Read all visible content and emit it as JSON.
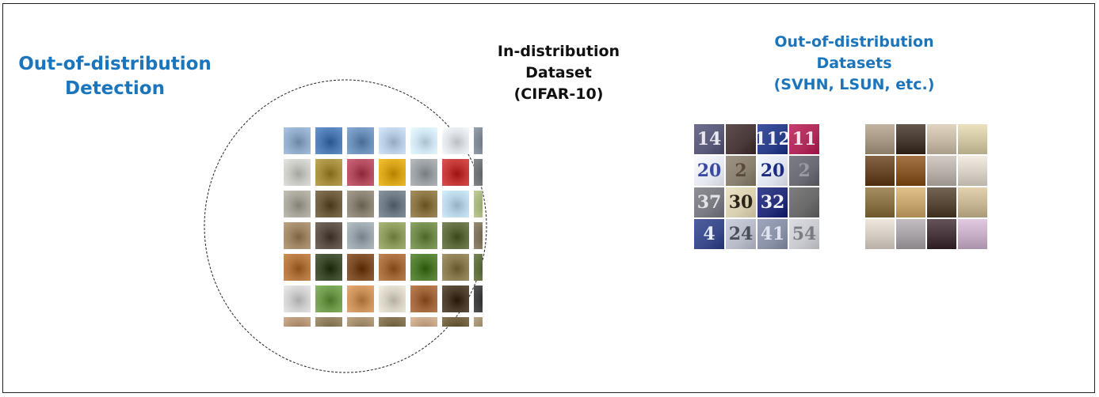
{
  "title": {
    "line1": "Out-of-distribution",
    "line2": "Detection"
  },
  "in_distribution": {
    "line1": "In-distribution",
    "line2": "Dataset",
    "line3": "(CIFAR-10)"
  },
  "out_of_distribution": {
    "line1": "Out-of-distribution",
    "line2": "Datasets",
    "line3": "(SVHN, LSUN, etc.)"
  },
  "colors": {
    "accent": "#1a75bc",
    "text": "#111111"
  },
  "cifar_rows": [
    [
      "#8fa9c9",
      "#4d79b3",
      "#6a8fb9",
      "#b9cde4",
      "#cfe5f2",
      "#dfe3e8",
      "#7b8591"
    ],
    [
      "#c9c9c4",
      "#a58b3c",
      "#b04a5c",
      "#d9a518",
      "#9aa0a3",
      "#c23636",
      "#6b6e70"
    ],
    [
      "#a7a49a",
      "#6c5a3d",
      "#8a8272",
      "#6e7b86",
      "#8a7443",
      "#b8d4e6",
      "#a3b27a"
    ],
    [
      "#a18766",
      "#5b4f46",
      "#9aa4ab",
      "#8d9c5c",
      "#6f8a4b",
      "#5e6b3c",
      "#7b6f58"
    ],
    [
      "#b0743c",
      "#3b4a2a",
      "#7a4a25",
      "#a56a3a",
      "#4e7a2e",
      "#8a7a50",
      "#5a6a3a"
    ],
    [
      "#cfcfcf",
      "#6f9a4b",
      "#c9905a",
      "#d8d3c4",
      "#a0663a",
      "#4a3a2a",
      "#3a3a3a"
    ],
    [
      "#b09070",
      "#8a7a5a",
      "#a08a6a",
      "#7a6a4a",
      "#c0a080",
      "#6a5a3a",
      "#9a8a6a"
    ]
  ],
  "svhn_rows": [
    [
      {
        "text": "14",
        "bg": "#5a5a7a",
        "fg": "#e8e8f0"
      },
      {
        "text": "",
        "bg": "#4a3a3a",
        "fg": "#ffffff"
      },
      {
        "text": "112",
        "bg": "#2c3f8a",
        "fg": "#f0f0ff"
      },
      {
        "text": "11",
        "bg": "#b02a5a",
        "fg": "#f4e6ee"
      }
    ],
    [
      {
        "text": "20",
        "bg": "#e6e8f2",
        "fg": "#3b4aa0"
      },
      {
        "text": "2",
        "bg": "#8a8070",
        "fg": "#5a4a3a"
      },
      {
        "text": "20",
        "bg": "#e0e4ee",
        "fg": "#1c2a80"
      },
      {
        "text": "2",
        "bg": "#6a6a72",
        "fg": "#9a9aa2"
      }
    ],
    [
      {
        "text": "37",
        "bg": "#7a7a82",
        "fg": "#e4e4ea"
      },
      {
        "text": "30",
        "bg": "#d8d0b0",
        "fg": "#2a2418"
      },
      {
        "text": "32",
        "bg": "#26307a",
        "fg": "#f4f4ff"
      },
      {
        "text": "",
        "bg": "#6a6a6a",
        "fg": "#ffffff"
      }
    ],
    [
      {
        "text": "4",
        "bg": "#3a4a8a",
        "fg": "#e8ecff"
      },
      {
        "text": "24",
        "bg": "#b8bcc8",
        "fg": "#4a4e5a"
      },
      {
        "text": "41",
        "bg": "#8a92a8",
        "fg": "#e0e4f0"
      },
      {
        "text": "54",
        "bg": "#c8cad0",
        "fg": "#7a7c84"
      }
    ]
  ],
  "lsun_rows": [
    [
      "#a89a86",
      "#4a3e34",
      "#c8bca8",
      "#d2c8a6"
    ],
    [
      "#6a4a2a",
      "#8a5a2a",
      "#b8b2aa",
      "#d8d2c8"
    ],
    [
      "#8a7448",
      "#c8a870",
      "#5a4a3a",
      "#c8b896"
    ],
    [
      "#d6cec4",
      "#a8a4a8",
      "#4a3a40",
      "#c8b0c8"
    ]
  ]
}
